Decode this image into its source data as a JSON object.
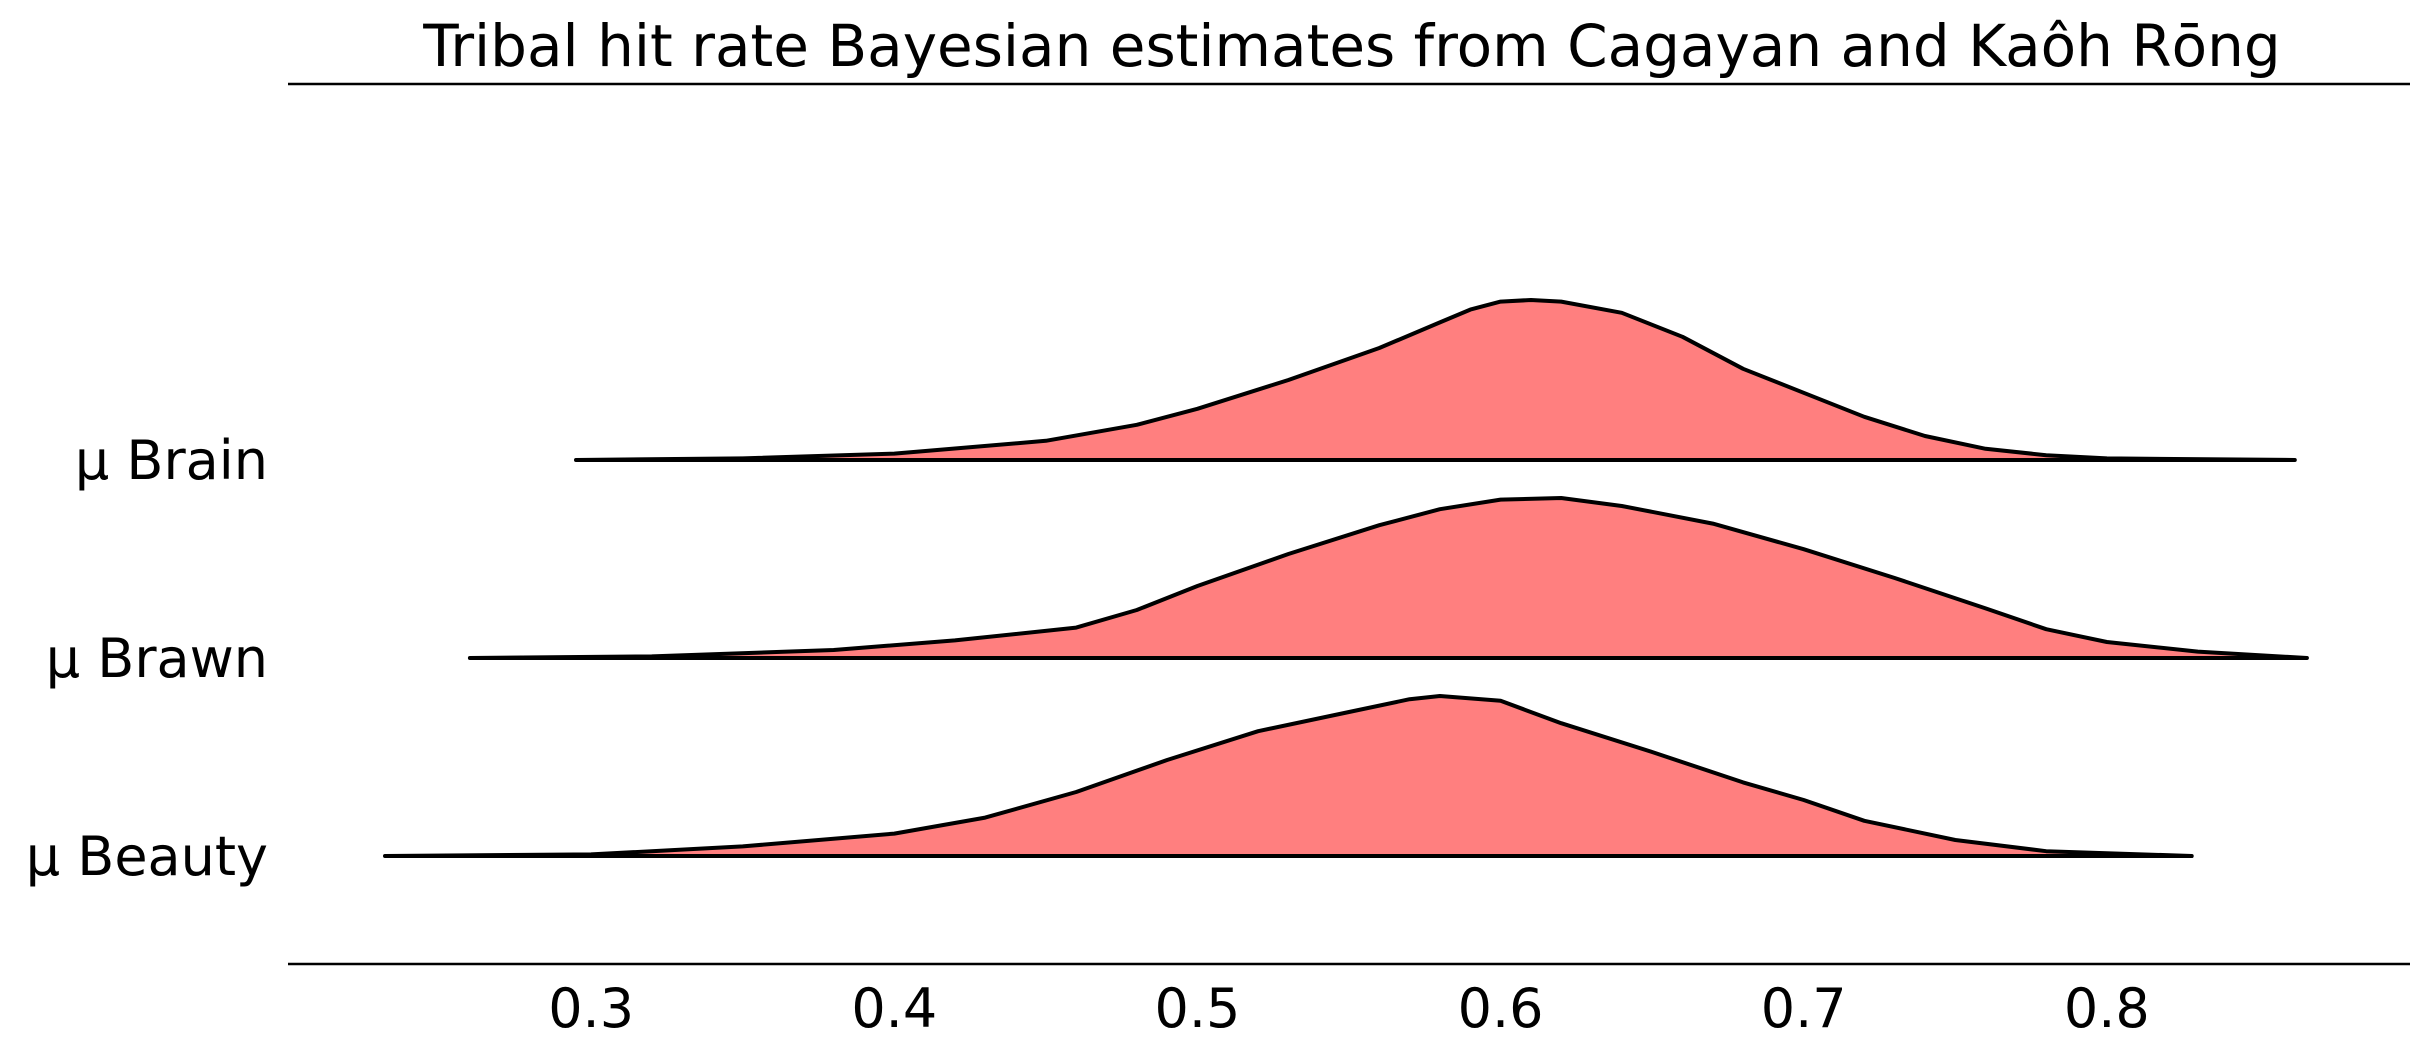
{
  "chart_data": {
    "type": "area",
    "title": "Tribal hit rate Bayesian estimates from Cagayan and Kaôh Rōng",
    "xlabel": "",
    "ylabel": "",
    "xlim": [
      0.2,
      0.9
    ],
    "x_ticks": [
      0.3,
      0.4,
      0.5,
      0.6,
      0.7,
      0.8
    ],
    "x_tick_labels": [
      "0.3",
      "0.4",
      "0.5",
      "0.6",
      "0.7",
      "0.8"
    ],
    "grid": false,
    "fill_color": "#ff7f7f",
    "line_color": "#000000",
    "series": [
      {
        "name": "μ Brain",
        "range": [
          0.295,
          0.862
        ],
        "density": [
          [
            0.295,
            0.0
          ],
          [
            0.35,
            0.01
          ],
          [
            0.4,
            0.04
          ],
          [
            0.45,
            0.12
          ],
          [
            0.48,
            0.22
          ],
          [
            0.5,
            0.32
          ],
          [
            0.53,
            0.5
          ],
          [
            0.56,
            0.7
          ],
          [
            0.58,
            0.86
          ],
          [
            0.59,
            0.94
          ],
          [
            0.6,
            0.99
          ],
          [
            0.61,
            1.0
          ],
          [
            0.62,
            0.99
          ],
          [
            0.64,
            0.92
          ],
          [
            0.66,
            0.77
          ],
          [
            0.68,
            0.57
          ],
          [
            0.7,
            0.42
          ],
          [
            0.72,
            0.27
          ],
          [
            0.74,
            0.15
          ],
          [
            0.76,
            0.07
          ],
          [
            0.78,
            0.03
          ],
          [
            0.8,
            0.01
          ],
          [
            0.862,
            0.0
          ]
        ]
      },
      {
        "name": "μ Brawn",
        "range": [
          0.26,
          0.866
        ],
        "density": [
          [
            0.26,
            0.0
          ],
          [
            0.32,
            0.01
          ],
          [
            0.38,
            0.05
          ],
          [
            0.42,
            0.11
          ],
          [
            0.46,
            0.19
          ],
          [
            0.48,
            0.3
          ],
          [
            0.5,
            0.45
          ],
          [
            0.53,
            0.65
          ],
          [
            0.56,
            0.83
          ],
          [
            0.58,
            0.93
          ],
          [
            0.6,
            0.99
          ],
          [
            0.62,
            1.0
          ],
          [
            0.64,
            0.95
          ],
          [
            0.67,
            0.84
          ],
          [
            0.7,
            0.68
          ],
          [
            0.73,
            0.5
          ],
          [
            0.76,
            0.31
          ],
          [
            0.78,
            0.18
          ],
          [
            0.8,
            0.1
          ],
          [
            0.83,
            0.04
          ],
          [
            0.866,
            0.0
          ]
        ]
      },
      {
        "name": "μ Beauty",
        "range": [
          0.232,
          0.828
        ],
        "density": [
          [
            0.232,
            0.0
          ],
          [
            0.3,
            0.01
          ],
          [
            0.35,
            0.06
          ],
          [
            0.4,
            0.14
          ],
          [
            0.43,
            0.24
          ],
          [
            0.46,
            0.4
          ],
          [
            0.49,
            0.6
          ],
          [
            0.52,
            0.78
          ],
          [
            0.55,
            0.9
          ],
          [
            0.57,
            0.98
          ],
          [
            0.58,
            1.0
          ],
          [
            0.6,
            0.97
          ],
          [
            0.62,
            0.83
          ],
          [
            0.65,
            0.65
          ],
          [
            0.68,
            0.46
          ],
          [
            0.7,
            0.35
          ],
          [
            0.72,
            0.22
          ],
          [
            0.75,
            0.1
          ],
          [
            0.78,
            0.03
          ],
          [
            0.828,
            0.0
          ]
        ]
      }
    ]
  }
}
